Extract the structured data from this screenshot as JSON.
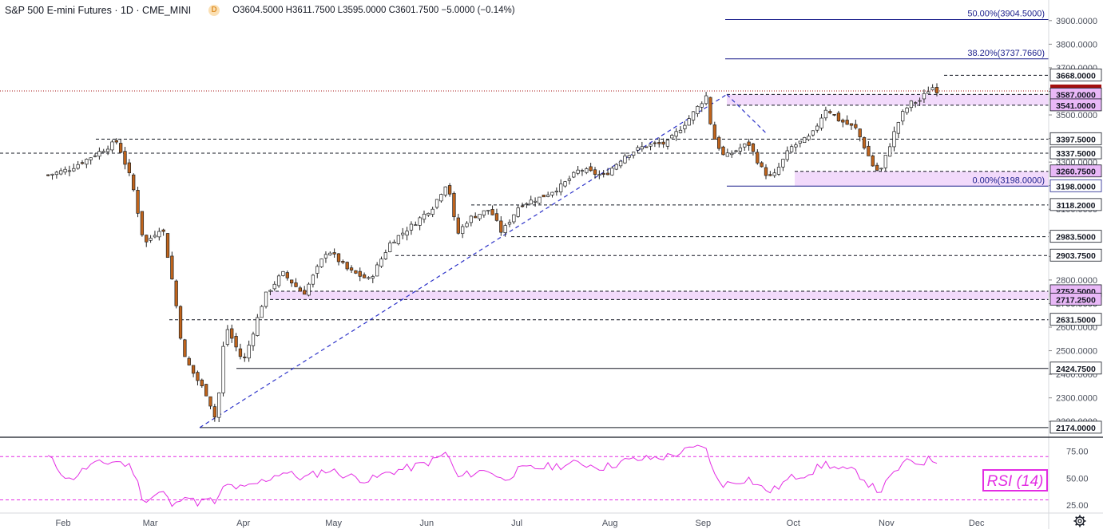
{
  "header": {
    "symbol": "S&P 500 E-mini Futures · 1D · CME_MINI",
    "badge": "D",
    "ohlc": "O3604.5000  H3611.7500  L3595.0000  C3601.7500  −5.0000  (−0.14%)"
  },
  "rsi_label": "RSI (14)",
  "colors": {
    "up": "#ffffff",
    "down": "#c1641b",
    "dashed_level": "#131722",
    "trend_line": "#2d33c9",
    "fib_line": "#1b1f8c",
    "zone_fill": "#f1d6fb",
    "rsi_line": "#e32de3",
    "last_price_bg": "#a40f0f"
  },
  "chart_data": [
    {
      "type": "candlestick",
      "title": "S&P 500 E-mini Futures · 1D · CME_MINI",
      "xlabel": "",
      "ylabel": "",
      "x_ticks": [
        "Feb",
        "Mar",
        "Apr",
        "May",
        "Jun",
        "Jul",
        "Aug",
        "Sep",
        "Oct",
        "Nov",
        "Dec"
      ],
      "y_ticks": [
        2200,
        2300,
        2400,
        2500,
        2600,
        2700,
        2800,
        2900,
        3000,
        3100,
        3200,
        3300,
        3400,
        3500,
        3600,
        3700,
        3800,
        3900
      ],
      "ylim": [
        2150,
        3940
      ],
      "last_price": 3601.75,
      "price_series": [
        [
          "2020-01-27",
          3245
        ],
        [
          "2020-02-03",
          3270
        ],
        [
          "2020-02-10",
          3320
        ],
        [
          "2020-02-19",
          3388
        ],
        [
          "2020-02-24",
          3210
        ],
        [
          "2020-02-28",
          2950
        ],
        [
          "2020-03-05",
          3030
        ],
        [
          "2020-03-09",
          2750
        ],
        [
          "2020-03-12",
          2480
        ],
        [
          "2020-03-16",
          2390
        ],
        [
          "2020-03-20",
          2310
        ],
        [
          "2020-03-23",
          2200
        ],
        [
          "2020-03-26",
          2610
        ],
        [
          "2020-04-01",
          2450
        ],
        [
          "2020-04-08",
          2730
        ],
        [
          "2020-04-14",
          2830
        ],
        [
          "2020-04-21",
          2740
        ],
        [
          "2020-04-29",
          2930
        ],
        [
          "2020-05-06",
          2840
        ],
        [
          "2020-05-13",
          2800
        ],
        [
          "2020-05-20",
          2960
        ],
        [
          "2020-05-27",
          3030
        ],
        [
          "2020-06-03",
          3110
        ],
        [
          "2020-06-08",
          3220
        ],
        [
          "2020-06-11",
          2990
        ],
        [
          "2020-06-15",
          3060
        ],
        [
          "2020-06-22",
          3100
        ],
        [
          "2020-06-26",
          3000
        ],
        [
          "2020-07-02",
          3120
        ],
        [
          "2020-07-09",
          3150
        ],
        [
          "2020-07-16",
          3200
        ],
        [
          "2020-07-22",
          3270
        ],
        [
          "2020-07-30",
          3240
        ],
        [
          "2020-08-06",
          3330
        ],
        [
          "2020-08-13",
          3370
        ],
        [
          "2020-08-20",
          3380
        ],
        [
          "2020-08-27",
          3480
        ],
        [
          "2020-09-02",
          3580
        ],
        [
          "2020-09-04",
          3420
        ],
        [
          "2020-09-08",
          3320
        ],
        [
          "2020-09-16",
          3380
        ],
        [
          "2020-09-21",
          3260
        ],
        [
          "2020-09-24",
          3230
        ],
        [
          "2020-09-30",
          3360
        ],
        [
          "2020-10-07",
          3410
        ],
        [
          "2020-10-12",
          3530
        ],
        [
          "2020-10-16",
          3480
        ],
        [
          "2020-10-22",
          3440
        ],
        [
          "2020-10-28",
          3270
        ],
        [
          "2020-10-30",
          3260
        ],
        [
          "2020-11-04",
          3440
        ],
        [
          "2020-11-06",
          3500
        ],
        [
          "2020-11-09",
          3550
        ],
        [
          "2020-11-12",
          3560
        ],
        [
          "2020-11-16",
          3620
        ],
        [
          "2020-11-18",
          3601.75
        ]
      ],
      "horizontal_levels": [
        3668.0,
        3587.0,
        3541.0,
        3397.5,
        3337.5,
        3260.75,
        3198.0,
        3118.2,
        2983.5,
        2903.75,
        2752.5,
        2717.25,
        2631.5,
        2424.75,
        2174.0
      ],
      "support_resistance_zones": [
        {
          "from": 3541.0,
          "to": 3587.0
        },
        {
          "from": 3198.0,
          "to": 3260.75
        },
        {
          "from": 2717.25,
          "to": 2752.5
        }
      ],
      "fibonacci": [
        {
          "label": "50.00%(3904.5000)",
          "value": 3904.5
        },
        {
          "label": "38.20%(3737.7660)",
          "value": 3737.766
        },
        {
          "label": "0.00%(3198.0000)",
          "value": 3198.0
        }
      ],
      "highlighted_axis_labels": [
        "3668.0000",
        "3601.7500",
        "3587.0000",
        "3541.0000",
        "3397.5000",
        "3337.5000",
        "3260.7500",
        "3198.0000",
        "3118.2000",
        "2983.5000",
        "2903.7500",
        "2752.5000",
        "2717.2500",
        "2631.5000",
        "2424.7500",
        "2174.0000"
      ]
    },
    {
      "type": "line",
      "title": "RSI (14)",
      "y_ticks": [
        25.0,
        50.0,
        75.0
      ],
      "ylim": [
        20,
        85
      ],
      "reference_lines": [
        70,
        30
      ],
      "series": [
        {
          "name": "RSI (14)",
          "values": [
            [
              "2020-01-27",
              70
            ],
            [
              "2020-02-03",
              48
            ],
            [
              "2020-02-10",
              62
            ],
            [
              "2020-02-19",
              66
            ],
            [
              "2020-02-24",
              60
            ],
            [
              "2020-02-28",
              28
            ],
            [
              "2020-03-05",
              38
            ],
            [
              "2020-03-09",
              22
            ],
            [
              "2020-03-12",
              37
            ],
            [
              "2020-03-16",
              27
            ],
            [
              "2020-03-20",
              30
            ],
            [
              "2020-03-23",
              27
            ],
            [
              "2020-03-26",
              44
            ],
            [
              "2020-04-01",
              40
            ],
            [
              "2020-04-08",
              48
            ],
            [
              "2020-04-14",
              56
            ],
            [
              "2020-04-21",
              50
            ],
            [
              "2020-04-29",
              58
            ],
            [
              "2020-05-06",
              52
            ],
            [
              "2020-05-13",
              48
            ],
            [
              "2020-05-20",
              56
            ],
            [
              "2020-05-27",
              60
            ],
            [
              "2020-06-03",
              66
            ],
            [
              "2020-06-08",
              74
            ],
            [
              "2020-06-11",
              50
            ],
            [
              "2020-06-15",
              54
            ],
            [
              "2020-06-22",
              58
            ],
            [
              "2020-06-26",
              48
            ],
            [
              "2020-07-02",
              58
            ],
            [
              "2020-07-09",
              60
            ],
            [
              "2020-07-16",
              62
            ],
            [
              "2020-07-22",
              64
            ],
            [
              "2020-07-30",
              60
            ],
            [
              "2020-08-06",
              66
            ],
            [
              "2020-08-13",
              68
            ],
            [
              "2020-08-20",
              70
            ],
            [
              "2020-08-27",
              76
            ],
            [
              "2020-09-02",
              80
            ],
            [
              "2020-09-04",
              55
            ],
            [
              "2020-09-08",
              44
            ],
            [
              "2020-09-16",
              50
            ],
            [
              "2020-09-21",
              40
            ],
            [
              "2020-09-24",
              38
            ],
            [
              "2020-09-30",
              50
            ],
            [
              "2020-10-07",
              56
            ],
            [
              "2020-10-12",
              64
            ],
            [
              "2020-10-16",
              58
            ],
            [
              "2020-10-22",
              56
            ],
            [
              "2020-10-28",
              40
            ],
            [
              "2020-10-30",
              38
            ],
            [
              "2020-11-04",
              56
            ],
            [
              "2020-11-06",
              62
            ],
            [
              "2020-11-09",
              66
            ],
            [
              "2020-11-12",
              64
            ],
            [
              "2020-11-16",
              68
            ],
            [
              "2020-11-18",
              65
            ]
          ]
        }
      ]
    }
  ]
}
